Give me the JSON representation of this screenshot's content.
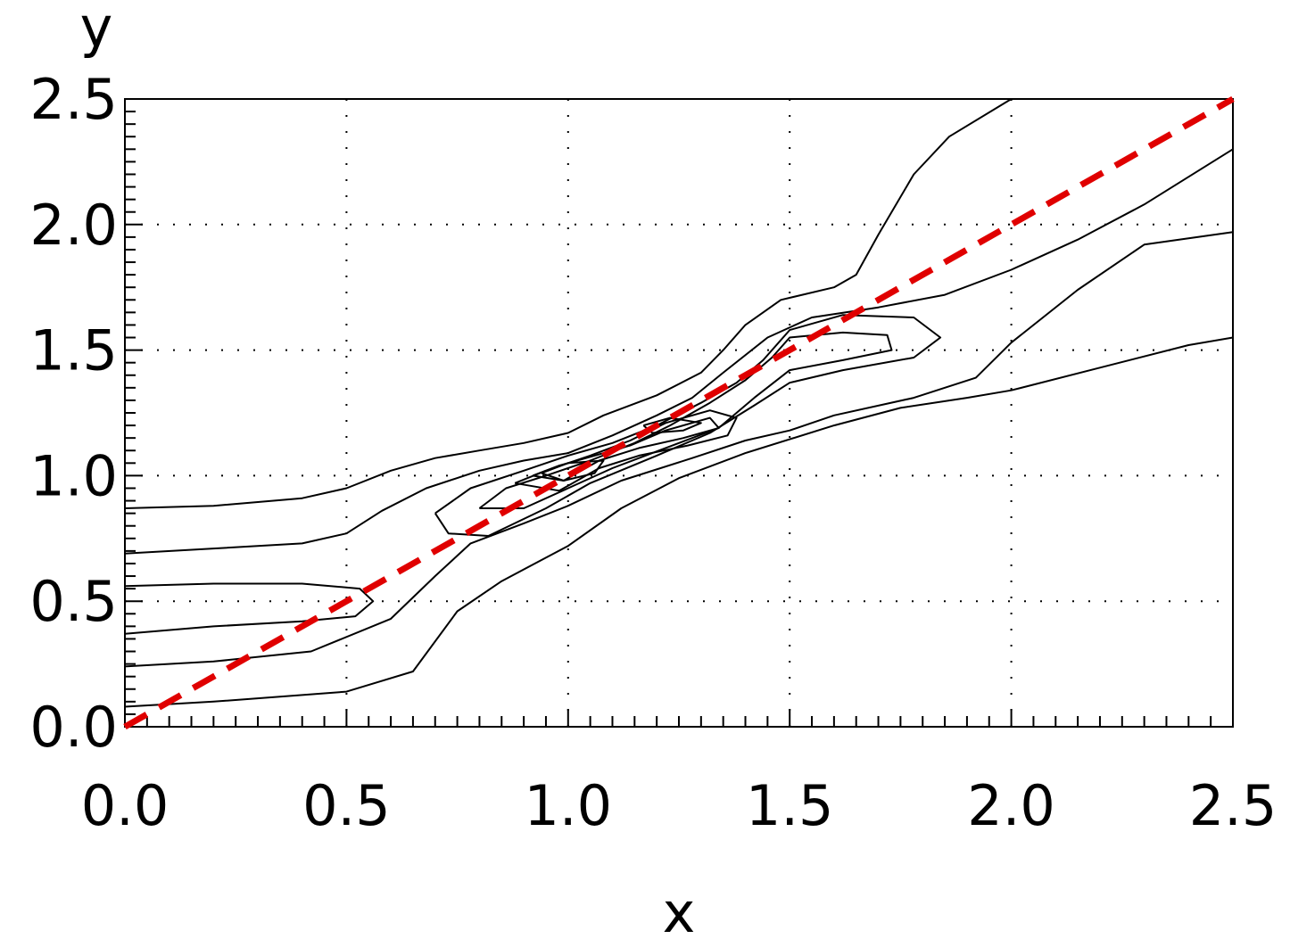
{
  "chart_data": {
    "type": "contour",
    "title": "",
    "xlabel": "x",
    "ylabel": "y",
    "xlim": [
      0.0,
      2.5
    ],
    "ylim": [
      0.0,
      2.5
    ],
    "x_ticks": [
      "0.0",
      "0.5",
      "1.0",
      "1.5",
      "2.0",
      "2.5"
    ],
    "y_ticks": [
      "0.0",
      "0.5",
      "1.0",
      "1.5",
      "2.0",
      "2.5"
    ],
    "x_tick_values": [
      0.0,
      0.5,
      1.0,
      1.5,
      2.0,
      2.5
    ],
    "y_tick_values": [
      0.0,
      0.5,
      1.0,
      1.5,
      2.0,
      2.5
    ],
    "minor_tick_step": 0.05,
    "grid": "dotted",
    "contour_color": "#000000",
    "reference_line": {
      "style": "dashed",
      "color": "#e00000",
      "points": [
        [
          0.0,
          0.0
        ],
        [
          2.5,
          2.5
        ]
      ]
    },
    "contours": [
      [
        [
          0.0,
          0.87
        ],
        [
          0.2,
          0.88
        ],
        [
          0.4,
          0.91
        ],
        [
          0.5,
          0.95
        ],
        [
          0.6,
          1.02
        ],
        [
          0.7,
          1.07
        ],
        [
          0.8,
          1.1
        ],
        [
          0.9,
          1.13
        ],
        [
          1.0,
          1.17
        ],
        [
          1.08,
          1.24
        ],
        [
          1.2,
          1.32
        ],
        [
          1.3,
          1.41
        ],
        [
          1.35,
          1.5
        ],
        [
          1.4,
          1.6
        ],
        [
          1.48,
          1.7
        ],
        [
          1.6,
          1.75
        ],
        [
          1.65,
          1.8
        ],
        [
          1.7,
          1.96
        ],
        [
          1.78,
          2.2
        ],
        [
          1.86,
          2.35
        ],
        [
          2.0,
          2.5
        ]
      ],
      [
        [
          0.0,
          0.69
        ],
        [
          0.2,
          0.71
        ],
        [
          0.4,
          0.73
        ],
        [
          0.5,
          0.77
        ],
        [
          0.58,
          0.86
        ],
        [
          0.68,
          0.95
        ],
        [
          0.8,
          1.02
        ],
        [
          0.9,
          1.06
        ],
        [
          1.0,
          1.09
        ],
        [
          1.1,
          1.16
        ],
        [
          1.2,
          1.24
        ],
        [
          1.28,
          1.31
        ],
        [
          1.35,
          1.41
        ],
        [
          1.45,
          1.55
        ],
        [
          1.55,
          1.63
        ],
        [
          1.7,
          1.67
        ],
        [
          1.85,
          1.72
        ],
        [
          2.0,
          1.82
        ],
        [
          2.15,
          1.94
        ],
        [
          2.3,
          2.08
        ],
        [
          2.5,
          2.3
        ]
      ],
      [
        [
          0.0,
          0.56
        ],
        [
          0.2,
          0.57
        ],
        [
          0.4,
          0.57
        ],
        [
          0.53,
          0.55
        ],
        [
          0.56,
          0.5
        ],
        [
          0.52,
          0.44
        ],
        [
          0.4,
          0.42
        ],
        [
          0.2,
          0.4
        ],
        [
          0.0,
          0.37
        ]
      ],
      [
        [
          0.0,
          0.24
        ],
        [
          0.2,
          0.26
        ],
        [
          0.42,
          0.3
        ],
        [
          0.6,
          0.43
        ],
        [
          0.7,
          0.6
        ],
        [
          0.78,
          0.73
        ],
        [
          0.9,
          0.81
        ],
        [
          1.0,
          0.88
        ],
        [
          1.12,
          0.98
        ],
        [
          1.28,
          1.07
        ],
        [
          1.4,
          1.14
        ],
        [
          1.5,
          1.18
        ],
        [
          1.6,
          1.24
        ],
        [
          1.78,
          1.31
        ],
        [
          1.92,
          1.39
        ],
        [
          2.0,
          1.53
        ],
        [
          2.15,
          1.74
        ],
        [
          2.3,
          1.92
        ],
        [
          2.5,
          1.97
        ]
      ],
      [
        [
          0.0,
          0.08
        ],
        [
          0.2,
          0.1
        ],
        [
          0.5,
          0.14
        ],
        [
          0.65,
          0.22
        ],
        [
          0.75,
          0.46
        ],
        [
          0.85,
          0.58
        ],
        [
          1.0,
          0.72
        ],
        [
          1.12,
          0.87
        ],
        [
          1.25,
          0.99
        ],
        [
          1.4,
          1.09
        ],
        [
          1.6,
          1.2
        ],
        [
          1.75,
          1.27
        ],
        [
          1.9,
          1.31
        ],
        [
          2.0,
          1.34
        ],
        [
          2.2,
          1.43
        ],
        [
          2.4,
          1.52
        ],
        [
          2.5,
          1.55
        ]
      ],
      [
        [
          0.7,
          0.85
        ],
        [
          0.78,
          0.95
        ],
        [
          0.9,
          1.02
        ],
        [
          1.0,
          1.08
        ],
        [
          1.1,
          1.13
        ],
        [
          1.2,
          1.2
        ],
        [
          1.3,
          1.29
        ],
        [
          1.38,
          1.37
        ],
        [
          1.44,
          1.46
        ],
        [
          1.5,
          1.58
        ],
        [
          1.62,
          1.64
        ],
        [
          1.78,
          1.63
        ],
        [
          1.84,
          1.55
        ],
        [
          1.78,
          1.47
        ],
        [
          1.62,
          1.42
        ],
        [
          1.5,
          1.37
        ],
        [
          1.42,
          1.28
        ],
        [
          1.32,
          1.17
        ],
        [
          1.2,
          1.08
        ],
        [
          1.05,
          0.97
        ],
        [
          0.95,
          0.87
        ],
        [
          0.82,
          0.76
        ],
        [
          0.73,
          0.77
        ],
        [
          0.7,
          0.85
        ]
      ],
      [
        [
          0.8,
          0.87
        ],
        [
          0.86,
          0.95
        ],
        [
          0.95,
          1.0
        ],
        [
          1.05,
          1.06
        ],
        [
          1.15,
          1.13
        ],
        [
          1.23,
          1.2
        ],
        [
          1.32,
          1.29
        ],
        [
          1.4,
          1.38
        ],
        [
          1.46,
          1.47
        ],
        [
          1.5,
          1.55
        ],
        [
          1.62,
          1.57
        ],
        [
          1.72,
          1.56
        ],
        [
          1.73,
          1.5
        ],
        [
          1.62,
          1.46
        ],
        [
          1.5,
          1.42
        ],
        [
          1.42,
          1.31
        ],
        [
          1.34,
          1.19
        ],
        [
          1.22,
          1.11
        ],
        [
          1.1,
          1.03
        ],
        [
          1.0,
          0.95
        ],
        [
          0.9,
          0.87
        ],
        [
          0.8,
          0.87
        ]
      ],
      [
        [
          0.88,
          0.97
        ],
        [
          0.95,
          1.02
        ],
        [
          1.05,
          1.08
        ],
        [
          1.14,
          1.14
        ],
        [
          1.22,
          1.21
        ],
        [
          1.32,
          1.26
        ],
        [
          1.38,
          1.23
        ],
        [
          1.36,
          1.16
        ],
        [
          1.27,
          1.12
        ],
        [
          1.16,
          1.08
        ],
        [
          1.07,
          1.03
        ],
        [
          0.98,
          0.94
        ],
        [
          0.88,
          0.97
        ]
      ],
      [
        [
          0.92,
          1.0
        ],
        [
          0.98,
          1.04
        ],
        [
          1.06,
          1.08
        ],
        [
          1.14,
          1.12
        ],
        [
          1.22,
          1.18
        ],
        [
          1.32,
          1.23
        ],
        [
          1.34,
          1.19
        ],
        [
          1.26,
          1.15
        ],
        [
          1.16,
          1.11
        ],
        [
          1.07,
          1.06
        ],
        [
          0.99,
          0.98
        ],
        [
          0.92,
          1.0
        ]
      ],
      [
        [
          0.94,
          1.01
        ],
        [
          1.0,
          1.05
        ],
        [
          1.08,
          1.06
        ],
        [
          1.06,
          1.01
        ],
        [
          0.99,
          0.98
        ],
        [
          0.94,
          1.01
        ]
      ],
      [
        [
          1.17,
          1.2
        ],
        [
          1.23,
          1.23
        ],
        [
          1.3,
          1.21
        ],
        [
          1.26,
          1.18
        ],
        [
          1.19,
          1.17
        ],
        [
          1.17,
          1.2
        ]
      ]
    ]
  }
}
